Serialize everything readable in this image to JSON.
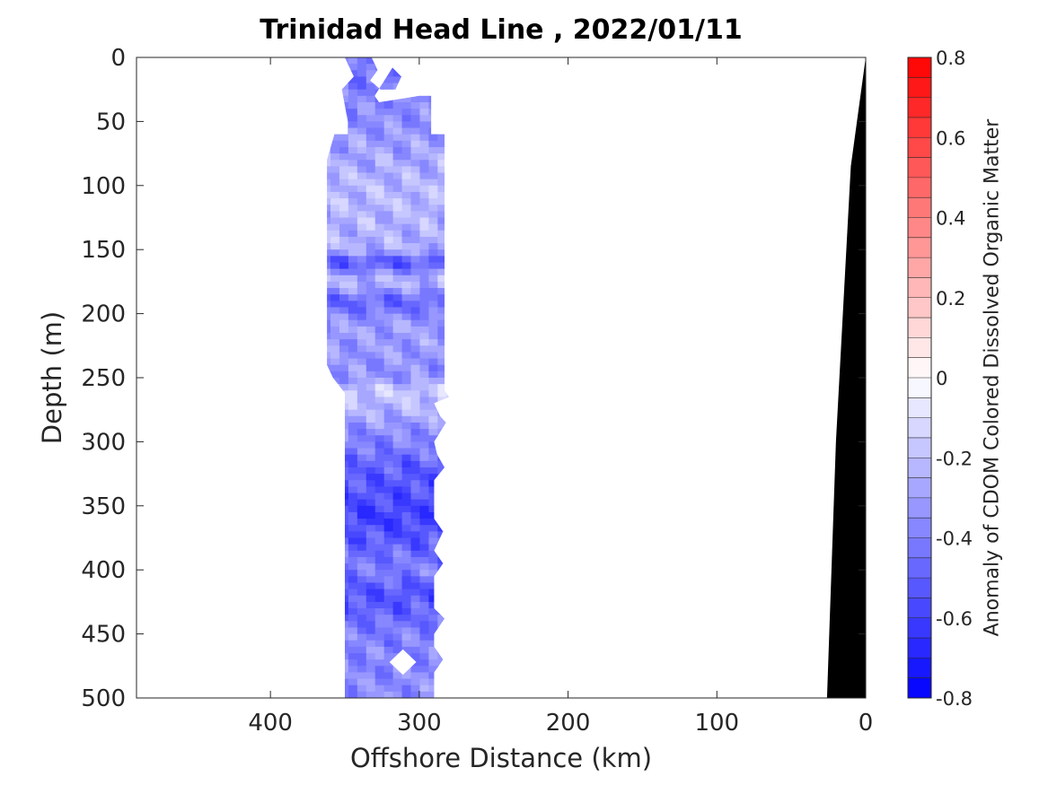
{
  "chart_data": {
    "type": "heatmap",
    "title": "Trinidad Head Line , 2022/01/11",
    "xlabel": "Offshore Distance (km)",
    "ylabel": "Depth (m)",
    "xlim": [
      490,
      0
    ],
    "ylim": [
      0,
      500
    ],
    "x_reversed": true,
    "y_reversed": true,
    "x_ticks": [
      "400",
      "300",
      "200",
      "100",
      "0"
    ],
    "y_ticks": [
      "0",
      "50",
      "100",
      "150",
      "200",
      "250",
      "300",
      "350",
      "400",
      "450",
      "500"
    ],
    "colorbar": {
      "label": "Anomaly of CDOM Colored Dissolved Organic Matter",
      "range": [
        -0.8,
        0.8
      ],
      "levels": 32,
      "ticks": [
        "0.8",
        "0.6",
        "0.4",
        "0.2",
        "0",
        "-0.2",
        "-0.4",
        "-0.6",
        "-0.8"
      ],
      "colormap": "blue-white-red"
    },
    "data_region": {
      "x_km": [
        280,
        352
      ],
      "depth_m": [
        0,
        500
      ],
      "anomaly_range": [
        -0.7,
        -0.1
      ]
    },
    "sample_profile": {
      "depth_m": [
        0,
        25,
        50,
        100,
        150,
        160,
        175,
        190,
        210,
        250,
        260,
        300,
        320,
        360,
        400,
        420,
        450,
        500
      ],
      "anomaly_mean": [
        -0.45,
        -0.4,
        -0.35,
        -0.22,
        -0.25,
        -0.55,
        -0.2,
        -0.5,
        -0.3,
        -0.35,
        -0.15,
        -0.4,
        -0.5,
        -0.6,
        -0.4,
        -0.55,
        -0.4,
        -0.35
      ]
    },
    "bathymetry": {
      "distance_km": [
        0,
        10,
        20,
        26
      ],
      "depth_m": [
        0,
        85,
        300,
        500
      ],
      "color": "#000000"
    }
  }
}
